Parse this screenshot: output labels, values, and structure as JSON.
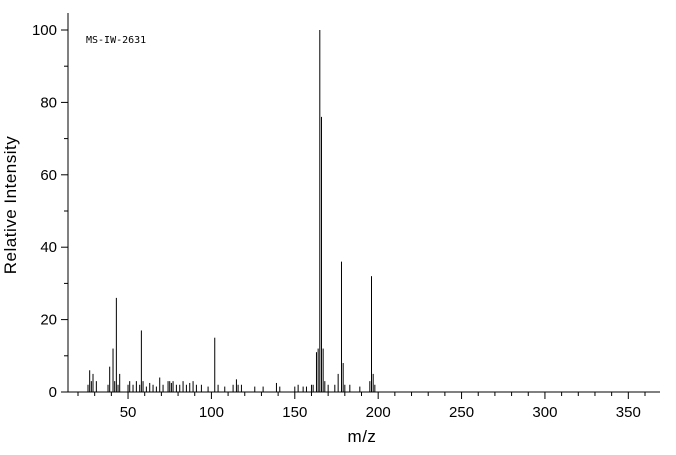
{
  "chart_data": {
    "type": "bar",
    "title": "",
    "annotation": "MS-IW-2631",
    "xlabel": "m/z",
    "ylabel": "Relative Intensity",
    "xlim": [
      14,
      369
    ],
    "ylim": [
      0,
      100
    ],
    "x_major_ticks": [
      50,
      100,
      150,
      200,
      250,
      300,
      350
    ],
    "x_minor_step": 10,
    "y_major_ticks": [
      0,
      20,
      40,
      60,
      80,
      100
    ],
    "y_minor_step": 10,
    "grid": false,
    "legend": "none",
    "line_color": "#000000",
    "peaks": [
      [
        26,
        2
      ],
      [
        27,
        6
      ],
      [
        28,
        3
      ],
      [
        29,
        5
      ],
      [
        31,
        3
      ],
      [
        38,
        2
      ],
      [
        39,
        7
      ],
      [
        41,
        12
      ],
      [
        42,
        3
      ],
      [
        43,
        26
      ],
      [
        44,
        2
      ],
      [
        45,
        5
      ],
      [
        50,
        2
      ],
      [
        51,
        3
      ],
      [
        53,
        2
      ],
      [
        55,
        3
      ],
      [
        57,
        2
      ],
      [
        58,
        17
      ],
      [
        59,
        3
      ],
      [
        61,
        1.5
      ],
      [
        63,
        2.5
      ],
      [
        65,
        2
      ],
      [
        67,
        1.5
      ],
      [
        69,
        4
      ],
      [
        71,
        2
      ],
      [
        74,
        3
      ],
      [
        75,
        3
      ],
      [
        76,
        2.5
      ],
      [
        77,
        3
      ],
      [
        79,
        2
      ],
      [
        81,
        2
      ],
      [
        83,
        3
      ],
      [
        85,
        2
      ],
      [
        87,
        2.5
      ],
      [
        89,
        3
      ],
      [
        91,
        2
      ],
      [
        94,
        2
      ],
      [
        98,
        1.5
      ],
      [
        102,
        15
      ],
      [
        104,
        2
      ],
      [
        108,
        1.5
      ],
      [
        113,
        2
      ],
      [
        115,
        3.5
      ],
      [
        116,
        2
      ],
      [
        118,
        2
      ],
      [
        126,
        1.5
      ],
      [
        131,
        1.5
      ],
      [
        139,
        2.5
      ],
      [
        141,
        1.5
      ],
      [
        150,
        1.5
      ],
      [
        152,
        2
      ],
      [
        155,
        1.5
      ],
      [
        157,
        1.5
      ],
      [
        160,
        2
      ],
      [
        161,
        2
      ],
      [
        163,
        11
      ],
      [
        164,
        12
      ],
      [
        165,
        100
      ],
      [
        166,
        76
      ],
      [
        167,
        12
      ],
      [
        168,
        3
      ],
      [
        170,
        2
      ],
      [
        174,
        2
      ],
      [
        176,
        5
      ],
      [
        178,
        36
      ],
      [
        179,
        8
      ],
      [
        180,
        2
      ],
      [
        183,
        2
      ],
      [
        189,
        1.5
      ],
      [
        195,
        3
      ],
      [
        196,
        32
      ],
      [
        197,
        5
      ],
      [
        198,
        2
      ]
    ]
  }
}
